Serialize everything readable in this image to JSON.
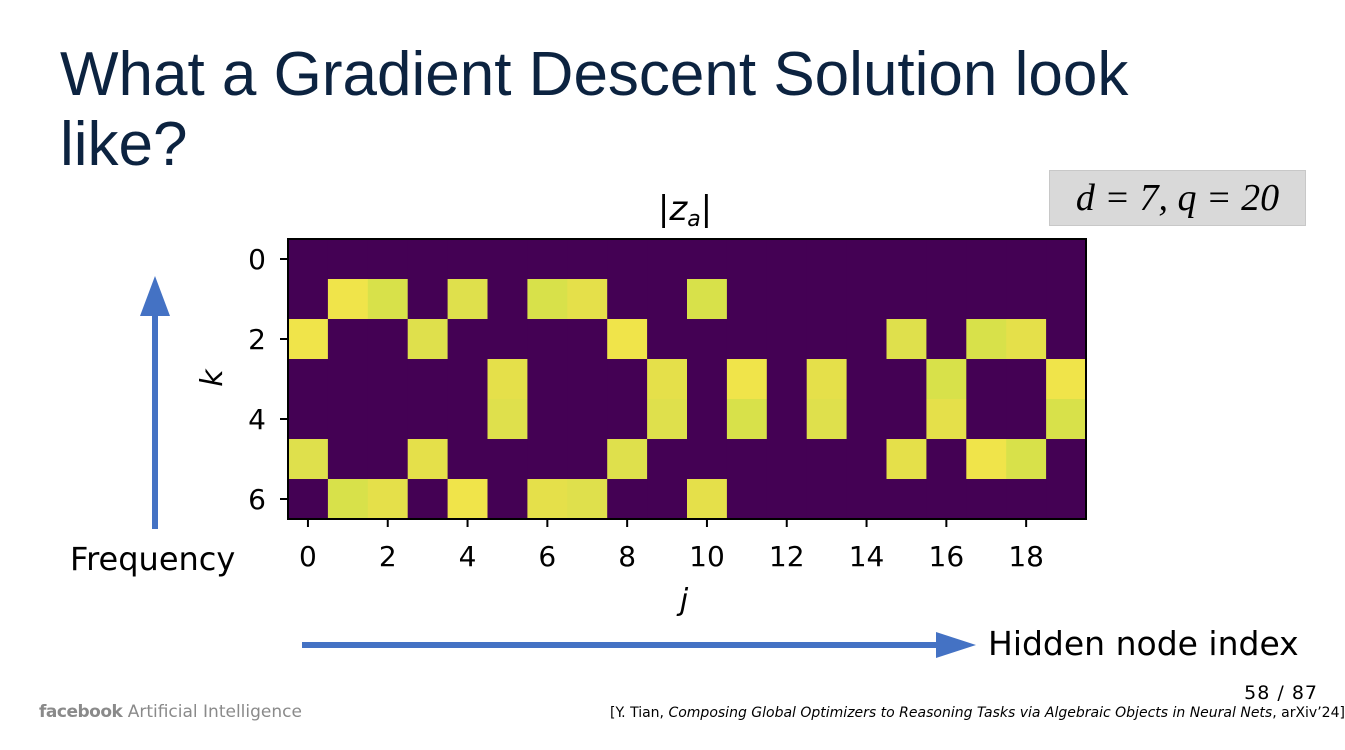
{
  "slide": {
    "title": "What a Gradient Descent Solution look like?",
    "params_label": "d = 7, q = 20",
    "frequency_label": "Frequency",
    "hidden_label": "Hidden node index",
    "page_number": "58 / 87",
    "citation": {
      "prefix": "[Y. Tian, ",
      "paper": "Composing Global Optimizers to Reasoning Tasks via Algebraic Objects in Neural Nets",
      "suffix": ", arXiv’24]"
    },
    "logo": {
      "brand": "facebook",
      "text": "Artificial Intelligence"
    },
    "colors": {
      "title": "#0c2340",
      "arrow": "#4472c4",
      "heatmap_low": "#440154",
      "heatmap_high": "#f4e24a"
    }
  },
  "chart_data": {
    "type": "heatmap",
    "title": "|z_a|",
    "xlabel": "j",
    "ylabel": "k",
    "x_ticks": [
      "0",
      "2",
      "4",
      "6",
      "8",
      "10",
      "12",
      "14",
      "16",
      "18"
    ],
    "y_ticks": [
      "0",
      "2",
      "4",
      "6"
    ],
    "xlim": [
      0,
      19
    ],
    "ylim": [
      0,
      6
    ],
    "colormap": "viridis",
    "values": [
      [
        0,
        0,
        0,
        0,
        0,
        0,
        0,
        0,
        0,
        0,
        0,
        0,
        0,
        0,
        0,
        0,
        0,
        0,
        0,
        0
      ],
      [
        0,
        1,
        1,
        0,
        1,
        0,
        1,
        1,
        0,
        0,
        1,
        0,
        0,
        0,
        0,
        0,
        0,
        0,
        0,
        0
      ],
      [
        1,
        0,
        0,
        1,
        0,
        0,
        0,
        0,
        1,
        0,
        0,
        0,
        0,
        0,
        0,
        1,
        0,
        1,
        1,
        0
      ],
      [
        0,
        0,
        0,
        0,
        0,
        1,
        0,
        0,
        0,
        1,
        0,
        1,
        0,
        1,
        0,
        0,
        1,
        0,
        0,
        1
      ],
      [
        0,
        0,
        0,
        0,
        0,
        1,
        0,
        0,
        0,
        1,
        0,
        1,
        0,
        1,
        0,
        0,
        1,
        0,
        0,
        1
      ],
      [
        1,
        0,
        0,
        1,
        0,
        0,
        0,
        0,
        1,
        0,
        0,
        0,
        0,
        0,
        0,
        1,
        0,
        1,
        1,
        0
      ],
      [
        0,
        1,
        1,
        0,
        1,
        0,
        1,
        1,
        0,
        0,
        1,
        0,
        0,
        0,
        0,
        0,
        0,
        0,
        0,
        0
      ]
    ]
  }
}
